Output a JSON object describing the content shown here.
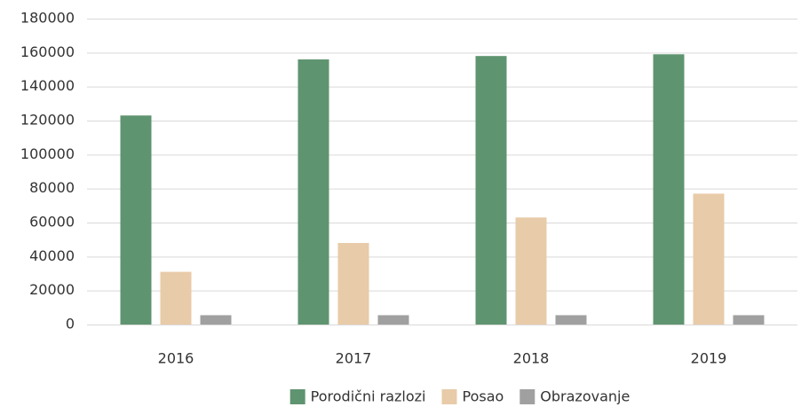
{
  "chart_data": {
    "type": "bar",
    "categories": [
      "2016",
      "2017",
      "2018",
      "2019"
    ],
    "series": [
      {
        "name": "Porodični razlozi",
        "color": "#5f9470",
        "values": [
          123000,
          156000,
          158000,
          159000
        ]
      },
      {
        "name": "Posao",
        "color": "#e8cba8",
        "values": [
          31000,
          48000,
          63000,
          77000
        ]
      },
      {
        "name": "Obrazovanje",
        "color": "#a0a0a0",
        "values": [
          5500,
          5500,
          5500,
          5500
        ]
      }
    ],
    "ylim": [
      0,
      180000
    ],
    "yticks": [
      0,
      20000,
      40000,
      60000,
      80000,
      100000,
      120000,
      140000,
      160000,
      180000
    ],
    "grid": true,
    "legend": "bottom"
  }
}
